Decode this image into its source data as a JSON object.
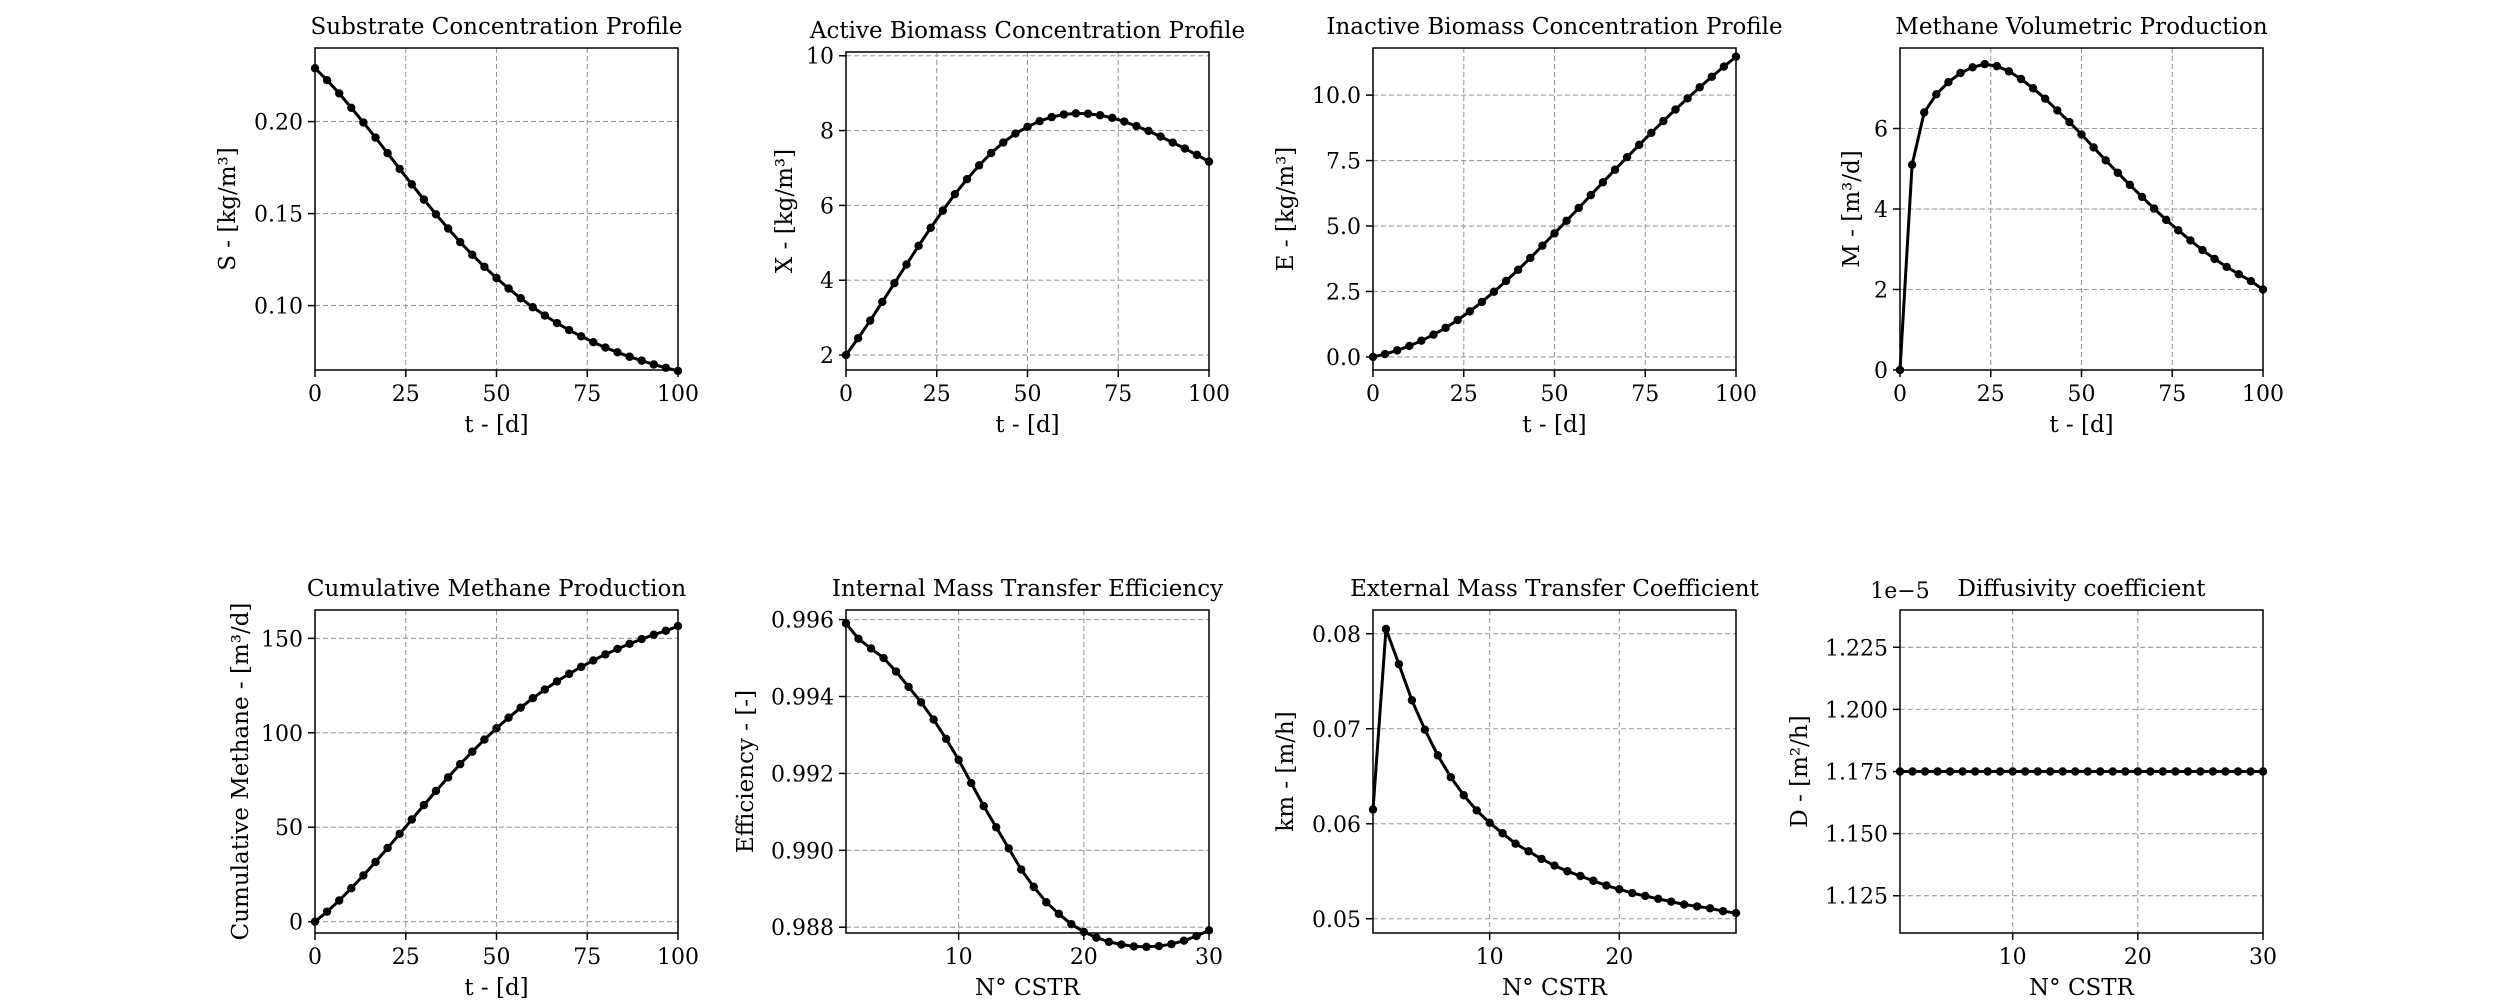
{
  "chart_data": [
    {
      "type": "line",
      "title": "Substrate Concentration Profile",
      "xlabel": "t - [d]",
      "ylabel": "S - [kg/m³]",
      "xlim": [
        0,
        100
      ],
      "ylim": [
        0.065,
        0.24
      ],
      "xticks": [
        0,
        25,
        50,
        75,
        100
      ],
      "xtick_labels": [
        "0",
        "25",
        "50",
        "75",
        "100"
      ],
      "yticks": [
        0.1,
        0.15,
        0.2
      ],
      "ytick_labels": [
        "0.10",
        "0.15",
        "0.20"
      ],
      "grid": true,
      "series": [
        {
          "x": [
            0,
            3.33,
            6.67,
            10,
            13.33,
            16.67,
            20,
            23.33,
            26.67,
            30,
            33.33,
            36.67,
            40,
            43.33,
            46.67,
            50,
            53.33,
            56.67,
            60,
            63.33,
            66.67,
            70,
            73.33,
            76.67,
            80,
            83.33,
            86.67,
            90,
            93.33,
            96.67,
            100
          ],
          "y": [
            0.229,
            0.2225,
            0.2153,
            0.2075,
            0.1995,
            0.1913,
            0.1828,
            0.1743,
            0.1659,
            0.1576,
            0.1496,
            0.1419,
            0.1345,
            0.1276,
            0.1211,
            0.115,
            0.1093,
            0.104,
            0.0991,
            0.0946,
            0.0905,
            0.0867,
            0.0833,
            0.0801,
            0.0772,
            0.0746,
            0.0722,
            0.0701,
            0.068,
            0.0662,
            0.0645
          ]
        }
      ]
    },
    {
      "type": "line",
      "title": "Active Biomass Concentration Profile",
      "xlabel": "t - [d]",
      "ylabel": "X - [kg/m³]",
      "xlim": [
        0,
        100
      ],
      "ylim": [
        1.6,
        10.1
      ],
      "xticks": [
        0,
        25,
        50,
        75,
        100
      ],
      "xtick_labels": [
        "0",
        "25",
        "50",
        "75",
        "100"
      ],
      "yticks": [
        2,
        4,
        6,
        8,
        10
      ],
      "ytick_labels": [
        "2",
        "4",
        "6",
        "8",
        "10"
      ],
      "grid": true,
      "series": [
        {
          "x": [
            0,
            3.33,
            6.67,
            10,
            13.33,
            16.67,
            20,
            23.33,
            26.67,
            30,
            33.33,
            36.67,
            40,
            43.33,
            46.67,
            50,
            53.33,
            56.67,
            60,
            63.33,
            66.67,
            70,
            73.33,
            76.67,
            80,
            83.33,
            86.67,
            90,
            93.33,
            96.67,
            100
          ],
          "y": [
            2.0,
            2.45,
            2.92,
            3.42,
            3.92,
            4.42,
            4.92,
            5.4,
            5.86,
            6.3,
            6.7,
            7.07,
            7.4,
            7.68,
            7.92,
            8.1,
            8.25,
            8.36,
            8.43,
            8.46,
            8.45,
            8.41,
            8.34,
            8.24,
            8.12,
            7.99,
            7.84,
            7.68,
            7.52,
            7.35,
            7.17
          ]
        }
      ]
    },
    {
      "type": "line",
      "title": "Inactive Biomass Concentration Profile",
      "xlabel": "t - [d]",
      "ylabel": "E - [kg/m³]",
      "xlim": [
        0,
        100
      ],
      "ylim": [
        -0.5,
        11.8
      ],
      "xticks": [
        0,
        25,
        50,
        75,
        100
      ],
      "xtick_labels": [
        "0",
        "25",
        "50",
        "75",
        "100"
      ],
      "yticks": [
        0,
        2.5,
        5,
        7.5,
        10
      ],
      "ytick_labels": [
        "0.0",
        "2.5",
        "5.0",
        "7.5",
        "10.0"
      ],
      "grid": true,
      "series": [
        {
          "x": [
            0,
            3.33,
            6.67,
            10,
            13.33,
            16.67,
            20,
            23.33,
            26.67,
            30,
            33.33,
            36.67,
            40,
            43.33,
            46.67,
            50,
            53.33,
            56.67,
            60,
            63.33,
            66.67,
            70,
            73.33,
            76.67,
            80,
            83.33,
            86.67,
            90,
            93.33,
            96.67,
            100
          ],
          "y": [
            0.0,
            0.11,
            0.25,
            0.42,
            0.62,
            0.85,
            1.11,
            1.41,
            1.74,
            2.1,
            2.49,
            2.9,
            3.33,
            3.78,
            4.25,
            4.72,
            5.2,
            5.69,
            6.18,
            6.67,
            7.15,
            7.63,
            8.1,
            8.56,
            9.01,
            9.45,
            9.88,
            10.3,
            10.7,
            11.09,
            11.47
          ]
        }
      ]
    },
    {
      "type": "line",
      "title": "Methane Volumetric Production",
      "xlabel": "t - [d]",
      "ylabel": "M - [m³/d]",
      "xlim": [
        0,
        100
      ],
      "ylim": [
        0,
        8
      ],
      "xticks": [
        0,
        25,
        50,
        75,
        100
      ],
      "xtick_labels": [
        "0",
        "25",
        "50",
        "75",
        "100"
      ],
      "yticks": [
        0,
        2,
        4,
        6
      ],
      "ytick_labels": [
        "0",
        "2",
        "4",
        "6"
      ],
      "grid": true,
      "series": [
        {
          "x": [
            0,
            3.33,
            6.67,
            10,
            13.33,
            16.67,
            20,
            23.33,
            26.67,
            30,
            33.33,
            36.67,
            40,
            43.33,
            46.67,
            50,
            53.33,
            56.67,
            60,
            63.33,
            66.67,
            70,
            73.33,
            76.67,
            80,
            83.33,
            86.67,
            90,
            93.33,
            96.67,
            100
          ],
          "y": [
            0.0,
            5.1,
            6.4,
            6.85,
            7.15,
            7.38,
            7.52,
            7.6,
            7.55,
            7.42,
            7.23,
            7.0,
            6.74,
            6.45,
            6.16,
            5.85,
            5.53,
            5.21,
            4.9,
            4.6,
            4.3,
            4.01,
            3.73,
            3.47,
            3.22,
            2.98,
            2.76,
            2.56,
            2.38,
            2.21,
            2.0
          ]
        }
      ]
    },
    {
      "type": "line",
      "title": "Cumulative Methane Production",
      "xlabel": "t - [d]",
      "ylabel": "Cumulative Methane - [m³/d]",
      "xlim": [
        0,
        100
      ],
      "ylim": [
        -6,
        165
      ],
      "xticks": [
        0,
        25,
        50,
        75,
        100
      ],
      "xtick_labels": [
        "0",
        "25",
        "50",
        "75",
        "100"
      ],
      "yticks": [
        0,
        50,
        100,
        150
      ],
      "ytick_labels": [
        "0",
        "50",
        "100",
        "150"
      ],
      "grid": true,
      "series": [
        {
          "x": [
            0,
            3.33,
            6.67,
            10,
            13.33,
            16.67,
            20,
            23.33,
            26.67,
            30,
            33.33,
            36.67,
            40,
            43.33,
            46.67,
            50,
            53.33,
            56.67,
            60,
            63.33,
            66.67,
            70,
            73.33,
            76.67,
            80,
            83.33,
            86.67,
            90,
            93.33,
            96.67,
            100
          ],
          "y": [
            0,
            5.3,
            11.2,
            17.7,
            24.5,
            31.6,
            39.0,
            46.5,
            54.1,
            61.7,
            69.2,
            76.4,
            83.4,
            90.0,
            96.4,
            102.4,
            108.0,
            113.3,
            118.3,
            122.9,
            127.2,
            131.2,
            134.9,
            138.3,
            141.5,
            144.4,
            147.1,
            149.6,
            151.9,
            154.0,
            156.5
          ]
        }
      ]
    },
    {
      "type": "line",
      "title": "Internal Mass Transfer Efficiency",
      "xlabel": "N° CSTR",
      "ylabel": "Efficiency - [-]",
      "xlim": [
        1,
        30
      ],
      "ylim": [
        0.98785,
        0.99625
      ],
      "xticks": [
        10,
        20,
        30
      ],
      "xtick_labels": [
        "10",
        "20",
        "30"
      ],
      "yticks": [
        0.988,
        0.99,
        0.992,
        0.994,
        0.996
      ],
      "ytick_labels": [
        "0.988",
        "0.990",
        "0.992",
        "0.994",
        "0.996"
      ],
      "grid": true,
      "series": [
        {
          "x": [
            1,
            2,
            3,
            4,
            5,
            6,
            7,
            8,
            9,
            10,
            11,
            12,
            13,
            14,
            15,
            16,
            17,
            18,
            19,
            20,
            21,
            22,
            23,
            24,
            25,
            26,
            27,
            28,
            29,
            30
          ],
          "y": [
            0.9959,
            0.9955,
            0.99525,
            0.995,
            0.99465,
            0.99425,
            0.99385,
            0.9934,
            0.9929,
            0.99235,
            0.99175,
            0.99115,
            0.9906,
            0.99005,
            0.9895,
            0.98905,
            0.98865,
            0.98835,
            0.98808,
            0.98788,
            0.98773,
            0.98762,
            0.98755,
            0.9875,
            0.98749,
            0.98751,
            0.98756,
            0.98765,
            0.98777,
            0.98792
          ]
        }
      ]
    },
    {
      "type": "line",
      "title": "External Mass Transfer Coefficient",
      "xlabel": "N° CSTR",
      "ylabel": "km - [m/h]",
      "xlim": [
        1,
        29
      ],
      "ylim": [
        0.0485,
        0.0825
      ],
      "xticks": [
        10,
        20
      ],
      "xtick_labels": [
        "10",
        "20"
      ],
      "yticks": [
        0.05,
        0.06,
        0.07,
        0.08
      ],
      "ytick_labels": [
        "0.05",
        "0.06",
        "0.07",
        "0.08"
      ],
      "grid": true,
      "series": [
        {
          "x": [
            1,
            2,
            3,
            4,
            5,
            6,
            7,
            8,
            9,
            10,
            11,
            12,
            13,
            14,
            15,
            16,
            17,
            18,
            19,
            20,
            21,
            22,
            23,
            24,
            25,
            26,
            27,
            28,
            29
          ],
          "y": [
            0.0615,
            0.0805,
            0.0768,
            0.073,
            0.0699,
            0.0672,
            0.0649,
            0.063,
            0.0614,
            0.0601,
            0.059,
            0.0579,
            0.0571,
            0.0563,
            0.0556,
            0.055,
            0.0545,
            0.054,
            0.0535,
            0.0531,
            0.0527,
            0.0524,
            0.0521,
            0.0518,
            0.0515,
            0.0513,
            0.0511,
            0.0508,
            0.0506
          ]
        }
      ]
    },
    {
      "type": "line",
      "title": "Diffusivity coefficient",
      "xlabel": "N° CSTR",
      "ylabel": "D - [m²/h]",
      "offset_text": "1e−5",
      "xlim": [
        1,
        30
      ],
      "ylim": [
        1.11,
        1.24
      ],
      "xticks": [
        10,
        20,
        30
      ],
      "xtick_labels": [
        "10",
        "20",
        "30"
      ],
      "yticks": [
        1.125,
        1.15,
        1.175,
        1.2,
        1.225
      ],
      "ytick_labels": [
        "1.125",
        "1.150",
        "1.175",
        "1.200",
        "1.225"
      ],
      "grid": true,
      "series": [
        {
          "x": [
            1,
            2,
            3,
            4,
            5,
            6,
            7,
            8,
            9,
            10,
            11,
            12,
            13,
            14,
            15,
            16,
            17,
            18,
            19,
            20,
            21,
            22,
            23,
            24,
            25,
            26,
            27,
            28,
            29,
            30
          ],
          "y": [
            1.175,
            1.175,
            1.175,
            1.175,
            1.175,
            1.175,
            1.175,
            1.175,
            1.175,
            1.175,
            1.175,
            1.175,
            1.175,
            1.175,
            1.175,
            1.175,
            1.175,
            1.175,
            1.175,
            1.175,
            1.175,
            1.175,
            1.175,
            1.175,
            1.175,
            1.175,
            1.175,
            1.175,
            1.175,
            1.175
          ]
        }
      ]
    }
  ]
}
